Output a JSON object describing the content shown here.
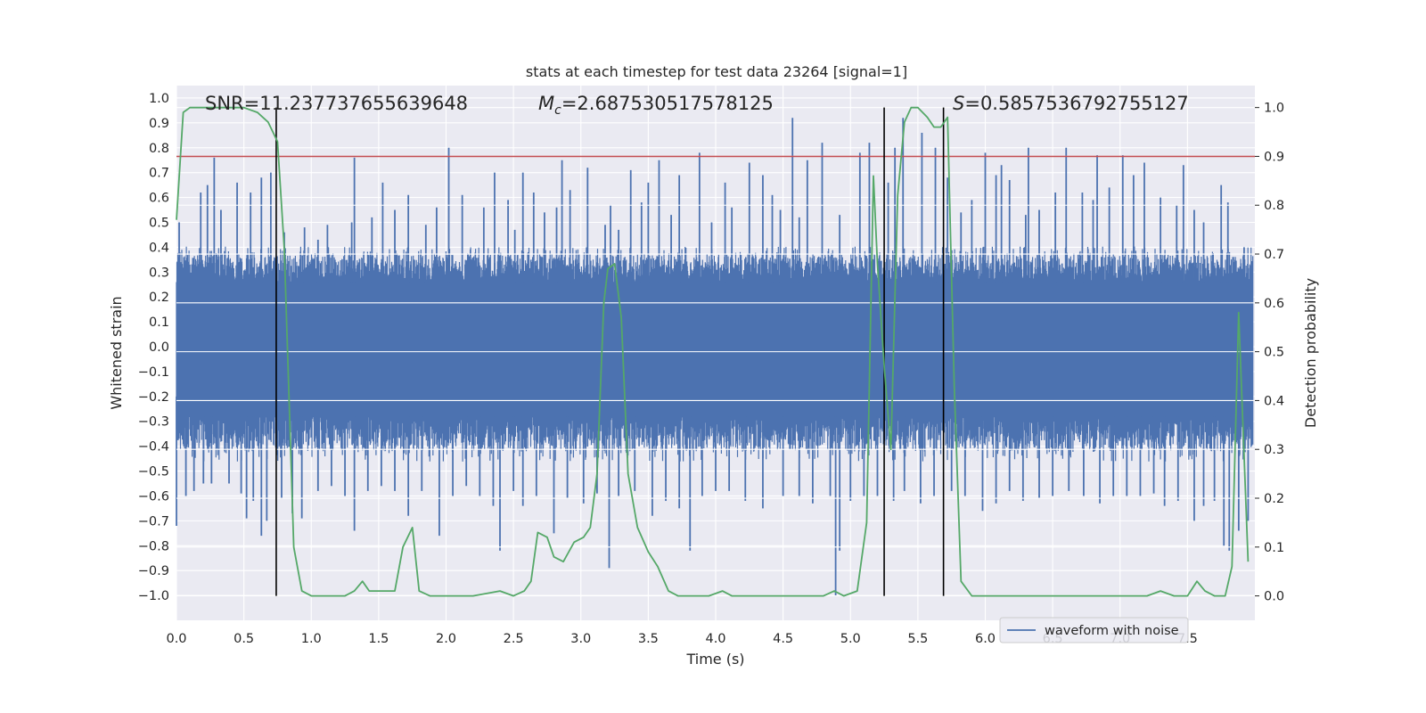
{
  "chart_data": {
    "type": "line",
    "title": "stats at each timestep for test data 23264 [signal=1]",
    "xlabel": "Time (s)",
    "ylabel": "Whitened strain",
    "y2label": "Detection probability",
    "xlim": [
      0.0,
      8.0
    ],
    "ylim": [
      -1.1,
      1.05
    ],
    "y2lim": [
      -0.05,
      1.045
    ],
    "x_ticks": [
      "0.0",
      "0.5",
      "1.0",
      "1.5",
      "2.0",
      "2.5",
      "3.0",
      "3.5",
      "4.0",
      "4.5",
      "5.0",
      "5.5",
      "6.0",
      "6.5",
      "7.0",
      "7.5"
    ],
    "y_ticks": [
      "1.0",
      "0.9",
      "0.8",
      "0.7",
      "0.6",
      "0.5",
      "0.4",
      "0.3",
      "0.2",
      "0.1",
      "0.0",
      "−0.1",
      "−0.2",
      "−0.3",
      "−0.4",
      "−0.5",
      "−0.6",
      "−0.7",
      "−0.8",
      "−0.9",
      "−1.0"
    ],
    "y2_ticks": [
      "1.0",
      "0.9",
      "0.8",
      "0.7",
      "0.6",
      "0.5",
      "0.4",
      "0.3",
      "0.2",
      "0.1",
      "0.0"
    ],
    "grid": true,
    "legend_placement": "lower-right",
    "annotations": {
      "snr": "SNR=11.237737655639648",
      "mc_symbol": "M",
      "mc_sub": "c",
      "mc_value": "=2.687530517578125",
      "s_symbol": "S",
      "s_value": "=0.5857536792755127"
    },
    "series": [
      {
        "name": "waveform with noise",
        "axis": "left",
        "color": "#4c72b0",
        "band_typical": [
          -0.42,
          0.37
        ],
        "band_core": [
          -0.28,
          0.26
        ],
        "spikes_up": [
          [
            0.02,
            0.5
          ],
          [
            0.18,
            0.62
          ],
          [
            0.23,
            0.65
          ],
          [
            0.28,
            0.76
          ],
          [
            0.33,
            0.55
          ],
          [
            0.45,
            0.66
          ],
          [
            0.55,
            0.62
          ],
          [
            0.63,
            0.68
          ],
          [
            0.7,
            0.7
          ],
          [
            0.8,
            0.46
          ],
          [
            0.95,
            0.48
          ],
          [
            1.05,
            0.43
          ],
          [
            1.12,
            0.49
          ],
          [
            1.3,
            0.5
          ],
          [
            1.32,
            0.76
          ],
          [
            1.45,
            0.52
          ],
          [
            1.53,
            0.66
          ],
          [
            1.62,
            0.55
          ],
          [
            1.72,
            0.61
          ],
          [
            1.85,
            0.49
          ],
          [
            1.93,
            0.56
          ],
          [
            2.02,
            0.8
          ],
          [
            2.12,
            0.61
          ],
          [
            2.28,
            0.56
          ],
          [
            2.36,
            0.7
          ],
          [
            2.46,
            0.59
          ],
          [
            2.51,
            0.47
          ],
          [
            2.57,
            0.7
          ],
          [
            2.65,
            0.62
          ],
          [
            2.73,
            0.54
          ],
          [
            2.82,
            0.56
          ],
          [
            2.86,
            0.75
          ],
          [
            2.92,
            0.63
          ],
          [
            3.05,
            0.72
          ],
          [
            3.18,
            0.49
          ],
          [
            3.22,
            0.57
          ],
          [
            3.28,
            0.47
          ],
          [
            3.37,
            0.71
          ],
          [
            3.45,
            0.58
          ],
          [
            3.5,
            0.66
          ],
          [
            3.58,
            0.75
          ],
          [
            3.67,
            0.53
          ],
          [
            3.73,
            0.69
          ],
          [
            3.88,
            0.78
          ],
          [
            3.97,
            0.5
          ],
          [
            4.07,
            0.66
          ],
          [
            4.12,
            0.56
          ],
          [
            4.25,
            0.74
          ],
          [
            4.35,
            0.69
          ],
          [
            4.42,
            0.61
          ],
          [
            4.48,
            0.55
          ],
          [
            4.57,
            0.92
          ],
          [
            4.62,
            0.52
          ],
          [
            4.68,
            0.75
          ],
          [
            4.79,
            0.82
          ],
          [
            4.92,
            0.53
          ],
          [
            5.07,
            0.78
          ],
          [
            5.14,
            0.82
          ],
          [
            5.28,
            0.66
          ],
          [
            5.33,
            0.8
          ],
          [
            5.39,
            0.92
          ],
          [
            5.53,
            0.86
          ],
          [
            5.63,
            0.8
          ],
          [
            5.72,
            0.68
          ],
          [
            5.82,
            0.54
          ],
          [
            5.9,
            0.59
          ],
          [
            6.0,
            0.78
          ],
          [
            6.08,
            0.69
          ],
          [
            6.12,
            0.73
          ],
          [
            6.18,
            0.67
          ],
          [
            6.3,
            0.53
          ],
          [
            6.32,
            0.8
          ],
          [
            6.4,
            0.55
          ],
          [
            6.52,
            0.62
          ],
          [
            6.6,
            0.8
          ],
          [
            6.72,
            0.62
          ],
          [
            6.8,
            0.59
          ],
          [
            6.83,
            0.77
          ],
          [
            6.92,
            0.64
          ],
          [
            7.02,
            0.77
          ],
          [
            7.1,
            0.69
          ],
          [
            7.18,
            0.74
          ],
          [
            7.3,
            0.6
          ],
          [
            7.42,
            0.57
          ],
          [
            7.47,
            0.73
          ],
          [
            7.55,
            0.55
          ],
          [
            7.62,
            0.5
          ],
          [
            7.75,
            0.65
          ],
          [
            7.8,
            0.58
          ],
          [
            7.92,
            0.4
          ]
        ],
        "spikes_down": [
          [
            0.0,
            -0.72
          ],
          [
            0.07,
            -0.6
          ],
          [
            0.13,
            -0.58
          ],
          [
            0.2,
            -0.55
          ],
          [
            0.26,
            -0.55
          ],
          [
            0.39,
            -0.55
          ],
          [
            0.48,
            -0.59
          ],
          [
            0.52,
            -0.69
          ],
          [
            0.57,
            -0.62
          ],
          [
            0.63,
            -0.76
          ],
          [
            0.67,
            -0.7
          ],
          [
            0.78,
            -0.61
          ],
          [
            0.86,
            -0.67
          ],
          [
            0.93,
            -0.69
          ],
          [
            1.05,
            -0.58
          ],
          [
            1.15,
            -0.56
          ],
          [
            1.25,
            -0.6
          ],
          [
            1.32,
            -0.74
          ],
          [
            1.42,
            -0.58
          ],
          [
            1.52,
            -0.56
          ],
          [
            1.62,
            -0.58
          ],
          [
            1.72,
            -0.68
          ],
          [
            1.82,
            -0.58
          ],
          [
            1.95,
            -0.76
          ],
          [
            2.05,
            -0.6
          ],
          [
            2.15,
            -0.56
          ],
          [
            2.25,
            -0.6
          ],
          [
            2.35,
            -0.64
          ],
          [
            2.4,
            -0.82
          ],
          [
            2.5,
            -0.58
          ],
          [
            2.57,
            -0.64
          ],
          [
            2.67,
            -0.6
          ],
          [
            2.8,
            -0.75
          ],
          [
            2.9,
            -0.61
          ],
          [
            3.02,
            -0.63
          ],
          [
            3.12,
            -0.59
          ],
          [
            3.21,
            -0.89
          ],
          [
            3.28,
            -0.6
          ],
          [
            3.4,
            -0.58
          ],
          [
            3.53,
            -0.68
          ],
          [
            3.63,
            -0.62
          ],
          [
            3.73,
            -0.65
          ],
          [
            3.81,
            -0.82
          ],
          [
            3.9,
            -0.6
          ],
          [
            4.0,
            -0.58
          ],
          [
            4.1,
            -0.58
          ],
          [
            4.22,
            -0.62
          ],
          [
            4.35,
            -0.65
          ],
          [
            4.5,
            -0.6
          ],
          [
            4.62,
            -0.6
          ],
          [
            4.72,
            -0.63
          ],
          [
            4.85,
            -0.6
          ],
          [
            4.89,
            -1.0
          ],
          [
            4.92,
            -0.82
          ],
          [
            5.0,
            -0.62
          ],
          [
            5.1,
            -0.6
          ],
          [
            5.2,
            -0.6
          ],
          [
            5.32,
            -0.62
          ],
          [
            5.4,
            -0.58
          ],
          [
            5.52,
            -0.63
          ],
          [
            5.62,
            -0.6
          ],
          [
            5.75,
            -0.58
          ],
          [
            5.85,
            -0.6
          ],
          [
            5.98,
            -0.66
          ],
          [
            6.08,
            -0.63
          ],
          [
            6.18,
            -0.58
          ],
          [
            6.28,
            -0.62
          ],
          [
            6.4,
            -0.61
          ],
          [
            6.5,
            -0.6
          ],
          [
            6.62,
            -0.58
          ],
          [
            6.73,
            -0.6
          ],
          [
            6.85,
            -0.63
          ],
          [
            6.95,
            -0.6
          ],
          [
            7.05,
            -0.6
          ],
          [
            7.15,
            -0.6
          ],
          [
            7.25,
            -0.59
          ],
          [
            7.33,
            -0.64
          ],
          [
            7.43,
            -0.62
          ],
          [
            7.55,
            -0.7
          ],
          [
            7.62,
            -0.64
          ],
          [
            7.7,
            -0.62
          ],
          [
            7.77,
            -0.8
          ],
          [
            7.81,
            -0.82
          ],
          [
            7.88,
            -0.74
          ],
          [
            7.95,
            -0.7
          ]
        ]
      },
      {
        "name": "",
        "axis": "right",
        "color": "#55a868",
        "x": [
          0.0,
          0.05,
          0.1,
          0.2,
          0.3,
          0.4,
          0.5,
          0.6,
          0.68,
          0.75,
          0.8,
          0.87,
          0.93,
          1.0,
          1.05,
          1.15,
          1.25,
          1.32,
          1.38,
          1.43,
          1.48,
          1.55,
          1.62,
          1.68,
          1.75,
          1.8,
          1.88,
          1.95,
          2.05,
          2.2,
          2.4,
          2.5,
          2.58,
          2.63,
          2.68,
          2.75,
          2.8,
          2.87,
          2.95,
          3.02,
          3.07,
          3.12,
          3.17,
          3.2,
          3.25,
          3.3,
          3.35,
          3.42,
          3.5,
          3.57,
          3.65,
          3.72,
          3.8,
          3.88,
          3.95,
          4.05,
          4.12,
          4.25,
          4.4,
          4.6,
          4.8,
          4.88,
          4.95,
          5.05,
          5.12,
          5.17,
          5.2,
          5.25,
          5.3,
          5.35,
          5.4,
          5.45,
          5.5,
          5.57,
          5.62,
          5.67,
          5.72,
          5.77,
          5.82,
          5.9,
          6.0,
          6.2,
          6.4,
          6.6,
          6.8,
          7.0,
          7.2,
          7.3,
          7.4,
          7.5,
          7.57,
          7.63,
          7.7,
          7.78,
          7.83,
          7.88,
          7.95
        ],
        "values": [
          0.77,
          0.99,
          1.0,
          1.0,
          1.0,
          1.0,
          1.0,
          0.99,
          0.97,
          0.93,
          0.71,
          0.1,
          0.01,
          0.0,
          0.0,
          0.0,
          0.0,
          0.01,
          0.03,
          0.01,
          0.01,
          0.01,
          0.01,
          0.1,
          0.14,
          0.01,
          0.0,
          0.0,
          0.0,
          0.0,
          0.01,
          0.0,
          0.01,
          0.03,
          0.13,
          0.12,
          0.08,
          0.07,
          0.11,
          0.12,
          0.14,
          0.25,
          0.6,
          0.67,
          0.68,
          0.57,
          0.25,
          0.14,
          0.09,
          0.06,
          0.01,
          0.0,
          0.0,
          0.0,
          0.0,
          0.01,
          0.0,
          0.0,
          0.0,
          0.0,
          0.0,
          0.01,
          0.0,
          0.01,
          0.15,
          0.86,
          0.68,
          0.47,
          0.3,
          0.82,
          0.97,
          1.0,
          1.0,
          0.98,
          0.96,
          0.96,
          0.98,
          0.43,
          0.03,
          0.0,
          0.0,
          0.0,
          0.0,
          0.0,
          0.0,
          0.0,
          0.0,
          0.01,
          0.0,
          0.0,
          0.03,
          0.01,
          0.0,
          0.0,
          0.06,
          0.58,
          0.07
        ]
      }
    ],
    "horizontal_lines": [
      {
        "axis": "right",
        "y": 0.9,
        "color": "#c44e52"
      }
    ],
    "vertical_lines": [
      {
        "x": 0.74,
        "y_top_right": 1.0,
        "color": "#000000"
      },
      {
        "x": 5.25,
        "y_top_right": 1.0,
        "color": "#000000"
      },
      {
        "x": 5.69,
        "y_top_right": 1.0,
        "color": "#000000"
      }
    ]
  }
}
